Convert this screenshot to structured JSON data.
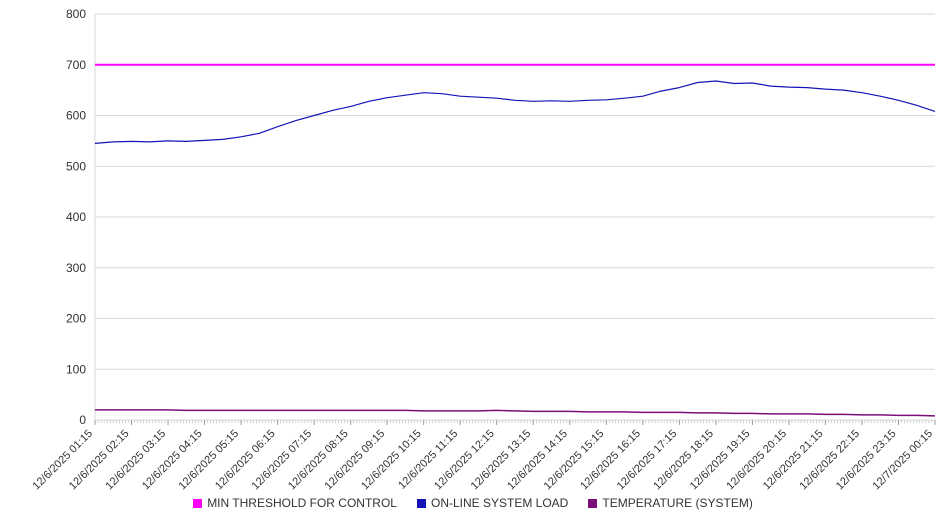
{
  "chart_data": {
    "type": "line",
    "title": "",
    "xlabel": "",
    "ylabel": "",
    "ylim": [
      0,
      800
    ],
    "y_ticks": [
      0,
      100,
      200,
      300,
      400,
      500,
      600,
      700,
      800
    ],
    "grid": true,
    "legend_position": "bottom",
    "categories": [
      "12/6/2025 01:15",
      "12/6/2025 02:15",
      "12/6/2025 03:15",
      "12/6/2025 04:15",
      "12/6/2025 05:15",
      "12/6/2025 06:15",
      "12/6/2025 07:15",
      "12/6/2025 08:15",
      "12/6/2025 09:15",
      "12/6/2025 10:15",
      "12/6/2025 11:15",
      "12/6/2025 12:15",
      "12/6/2025 13:15",
      "12/6/2025 14:15",
      "12/6/2025 15:15",
      "12/6/2025 16:15",
      "12/6/2025 17:15",
      "12/6/2025 18:15",
      "12/6/2025 19:15",
      "12/6/2025 20:15",
      "12/6/2025 21:15",
      "12/6/2025 22:15",
      "12/6/2025 23:15",
      "12/7/2025 00:15"
    ],
    "series": [
      {
        "name": "MIN THRESHOLD FOR CONTROL",
        "color": "#ff00ff",
        "values": [
          700,
          700
        ]
      },
      {
        "name": "ON-LINE SYSTEM LOAD",
        "color": "#1414b8",
        "values": [
          545,
          548,
          549,
          548,
          550,
          549,
          551,
          553,
          558,
          565,
          578,
          590,
          600,
          610,
          618,
          628,
          635,
          640,
          645,
          643,
          638,
          636,
          634,
          630,
          628,
          629,
          628,
          630,
          631,
          634,
          638,
          648,
          655,
          665,
          668,
          663,
          664,
          658,
          656,
          655,
          652,
          650,
          645,
          638,
          630,
          620,
          608
        ]
      },
      {
        "name": "TEMPERATURE (SYSTEM)",
        "color": "#7a0f7a",
        "values": [
          20,
          20,
          20,
          20,
          20,
          19,
          19,
          19,
          19,
          19,
          19,
          19,
          19,
          19,
          19,
          19,
          19,
          19,
          18,
          18,
          18,
          18,
          19,
          18,
          17,
          17,
          17,
          16,
          16,
          16,
          15,
          15,
          15,
          14,
          14,
          13,
          13,
          12,
          12,
          12,
          11,
          11,
          10,
          10,
          9,
          9,
          8
        ]
      }
    ]
  }
}
